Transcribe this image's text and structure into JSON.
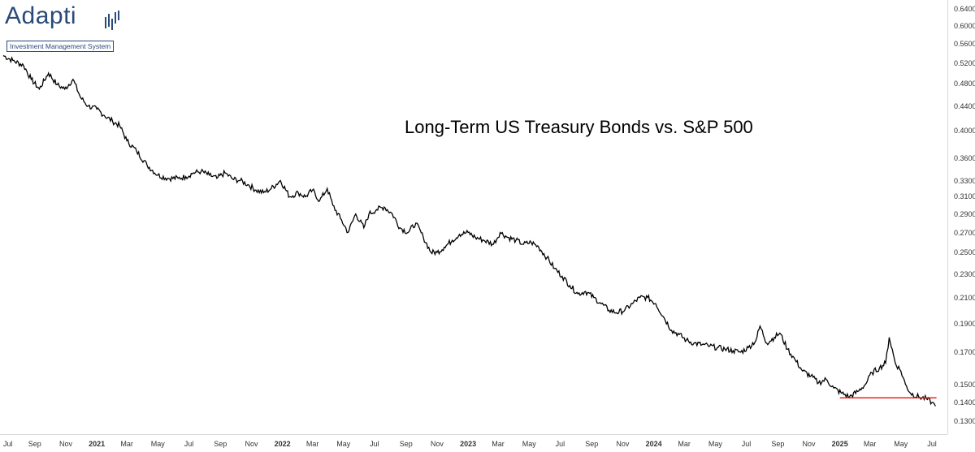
{
  "brand": {
    "name": "Adapti",
    "tagline": "Investment Management System",
    "accent": "#2a4a7a"
  },
  "chart_data": {
    "type": "line",
    "title": "Long-Term US Treasury Bonds vs. S&P 500",
    "y_scale": "log",
    "ylim": [
      0.125,
      0.655
    ],
    "y_ticks": [
      "0.6400",
      "0.6000",
      "0.5600",
      "0.5200",
      "0.4800",
      "0.4400",
      "0.4000",
      "0.3600",
      "0.3300",
      "0.3100",
      "0.2900",
      "0.2700",
      "0.2500",
      "0.2300",
      "0.2100",
      "0.1900",
      "0.1700",
      "0.1500",
      "0.1400",
      "0.1300"
    ],
    "x_ticks": [
      {
        "label": "Jul",
        "date": "2020-07"
      },
      {
        "label": "Sep",
        "date": "2020-09"
      },
      {
        "label": "Nov",
        "date": "2020-11"
      },
      {
        "label": "2021",
        "date": "2021-01",
        "year": true
      },
      {
        "label": "Mar",
        "date": "2021-03"
      },
      {
        "label": "May",
        "date": "2021-05"
      },
      {
        "label": "Jul",
        "date": "2021-07"
      },
      {
        "label": "Sep",
        "date": "2021-09"
      },
      {
        "label": "Nov",
        "date": "2021-11"
      },
      {
        "label": "2022",
        "date": "2022-01",
        "year": true
      },
      {
        "label": "Mar",
        "date": "2022-03"
      },
      {
        "label": "May",
        "date": "2022-05"
      },
      {
        "label": "Jul",
        "date": "2022-07"
      },
      {
        "label": "Sep",
        "date": "2022-09"
      },
      {
        "label": "Nov",
        "date": "2022-11"
      },
      {
        "label": "2023",
        "date": "2023-01",
        "year": true
      },
      {
        "label": "Mar",
        "date": "2023-03"
      },
      {
        "label": "May",
        "date": "2023-05"
      },
      {
        "label": "Jul",
        "date": "2023-07"
      },
      {
        "label": "Sep",
        "date": "2023-09"
      },
      {
        "label": "Nov",
        "date": "2023-11"
      },
      {
        "label": "2024",
        "date": "2024-01",
        "year": true
      },
      {
        "label": "Mar",
        "date": "2024-03"
      },
      {
        "label": "May",
        "date": "2024-05"
      },
      {
        "label": "Jul",
        "date": "2024-07"
      },
      {
        "label": "Sep",
        "date": "2024-09"
      },
      {
        "label": "Nov",
        "date": "2024-11"
      },
      {
        "label": "2025",
        "date": "2025-01",
        "year": true
      },
      {
        "label": "Mar",
        "date": "2025-03"
      },
      {
        "label": "May",
        "date": "2025-05"
      },
      {
        "label": "Jul",
        "date": "2025-07"
      }
    ],
    "series": [
      {
        "color": "#000000",
        "points": [
          [
            "2020-07-01",
            0.535
          ],
          [
            "2020-07-20",
            0.525
          ],
          [
            "2020-08-10",
            0.515
          ],
          [
            "2020-08-25",
            0.488
          ],
          [
            "2020-09-10",
            0.47
          ],
          [
            "2020-09-28",
            0.5
          ],
          [
            "2020-10-15",
            0.478
          ],
          [
            "2020-10-30",
            0.47
          ],
          [
            "2020-11-15",
            0.488
          ],
          [
            "2020-11-30",
            0.455
          ],
          [
            "2020-12-15",
            0.44
          ],
          [
            "2021-01-01",
            0.435
          ],
          [
            "2021-01-15",
            0.425
          ],
          [
            "2021-02-01",
            0.415
          ],
          [
            "2021-02-15",
            0.408
          ],
          [
            "2021-03-01",
            0.385
          ],
          [
            "2021-03-20",
            0.37
          ],
          [
            "2021-04-10",
            0.35
          ],
          [
            "2021-05-01",
            0.337
          ],
          [
            "2021-05-20",
            0.333
          ],
          [
            "2021-06-10",
            0.333
          ],
          [
            "2021-06-25",
            0.335
          ],
          [
            "2021-07-10",
            0.34
          ],
          [
            "2021-07-25",
            0.342
          ],
          [
            "2021-08-10",
            0.337
          ],
          [
            "2021-08-25",
            0.333
          ],
          [
            "2021-09-10",
            0.34
          ],
          [
            "2021-09-25",
            0.332
          ],
          [
            "2021-10-10",
            0.33
          ],
          [
            "2021-10-25",
            0.325
          ],
          [
            "2021-11-10",
            0.318
          ],
          [
            "2021-11-25",
            0.315
          ],
          [
            "2021-12-10",
            0.32
          ],
          [
            "2021-12-28",
            0.33
          ],
          [
            "2022-01-15",
            0.31
          ],
          [
            "2022-02-01",
            0.315
          ],
          [
            "2022-02-15",
            0.31
          ],
          [
            "2022-03-01",
            0.318
          ],
          [
            "2022-03-15",
            0.305
          ],
          [
            "2022-03-30",
            0.32
          ],
          [
            "2022-04-10",
            0.3
          ],
          [
            "2022-04-25",
            0.285
          ],
          [
            "2022-05-10",
            0.27
          ],
          [
            "2022-05-25",
            0.29
          ],
          [
            "2022-06-10",
            0.275
          ],
          [
            "2022-06-20",
            0.29
          ],
          [
            "2022-07-05",
            0.295
          ],
          [
            "2022-07-20",
            0.298
          ],
          [
            "2022-08-05",
            0.29
          ],
          [
            "2022-08-20",
            0.275
          ],
          [
            "2022-09-05",
            0.27
          ],
          [
            "2022-09-20",
            0.28
          ],
          [
            "2022-10-05",
            0.265
          ],
          [
            "2022-10-20",
            0.25
          ],
          [
            "2022-11-01",
            0.25
          ],
          [
            "2022-11-15",
            0.255
          ],
          [
            "2022-12-01",
            0.262
          ],
          [
            "2022-12-15",
            0.268
          ],
          [
            "2023-01-01",
            0.27
          ],
          [
            "2023-01-15",
            0.265
          ],
          [
            "2023-02-01",
            0.262
          ],
          [
            "2023-02-20",
            0.258
          ],
          [
            "2023-03-05",
            0.27
          ],
          [
            "2023-03-20",
            0.265
          ],
          [
            "2023-04-05",
            0.262
          ],
          [
            "2023-04-20",
            0.258
          ],
          [
            "2023-05-05",
            0.26
          ],
          [
            "2023-05-20",
            0.255
          ],
          [
            "2023-06-05",
            0.245
          ],
          [
            "2023-06-20",
            0.235
          ],
          [
            "2023-07-05",
            0.228
          ],
          [
            "2023-07-20",
            0.22
          ],
          [
            "2023-08-05",
            0.213
          ],
          [
            "2023-08-20",
            0.215
          ],
          [
            "2023-09-05",
            0.21
          ],
          [
            "2023-09-20",
            0.205
          ],
          [
            "2023-10-05",
            0.2
          ],
          [
            "2023-10-20",
            0.198
          ],
          [
            "2023-11-05",
            0.2
          ],
          [
            "2023-11-20",
            0.205
          ],
          [
            "2023-12-05",
            0.21
          ],
          [
            "2023-12-20",
            0.21
          ],
          [
            "2024-01-05",
            0.205
          ],
          [
            "2024-01-20",
            0.195
          ],
          [
            "2024-02-05",
            0.185
          ],
          [
            "2024-02-20",
            0.182
          ],
          [
            "2024-03-05",
            0.178
          ],
          [
            "2024-03-20",
            0.176
          ],
          [
            "2024-04-05",
            0.175
          ],
          [
            "2024-04-20",
            0.174
          ],
          [
            "2024-05-05",
            0.173
          ],
          [
            "2024-05-20",
            0.172
          ],
          [
            "2024-06-05",
            0.171
          ],
          [
            "2024-06-20",
            0.17
          ],
          [
            "2024-07-05",
            0.173
          ],
          [
            "2024-07-20",
            0.178
          ],
          [
            "2024-07-28",
            0.188
          ],
          [
            "2024-08-10",
            0.176
          ],
          [
            "2024-08-25",
            0.18
          ],
          [
            "2024-09-05",
            0.183
          ],
          [
            "2024-09-20",
            0.172
          ],
          [
            "2024-10-05",
            0.165
          ],
          [
            "2024-10-20",
            0.158
          ],
          [
            "2024-11-05",
            0.155
          ],
          [
            "2024-11-20",
            0.151
          ],
          [
            "2024-12-05",
            0.153
          ],
          [
            "2024-12-20",
            0.148
          ],
          [
            "2025-01-05",
            0.145
          ],
          [
            "2025-01-20",
            0.143
          ],
          [
            "2025-02-05",
            0.146
          ],
          [
            "2025-02-20",
            0.15
          ],
          [
            "2025-03-05",
            0.157
          ],
          [
            "2025-03-20",
            0.16
          ],
          [
            "2025-04-01",
            0.163
          ],
          [
            "2025-04-08",
            0.18
          ],
          [
            "2025-04-20",
            0.163
          ],
          [
            "2025-05-01",
            0.158
          ],
          [
            "2025-05-10",
            0.15
          ],
          [
            "2025-05-20",
            0.145
          ],
          [
            "2025-06-05",
            0.143
          ],
          [
            "2025-06-20",
            0.142
          ],
          [
            "2025-07-01",
            0.14
          ],
          [
            "2025-07-08",
            0.138
          ]
        ]
      }
    ],
    "reference_line": {
      "y": 0.1425,
      "color": "#e8231c",
      "x_start": "2025-01-01",
      "x_end": "2025-07-10"
    },
    "grid": false
  }
}
